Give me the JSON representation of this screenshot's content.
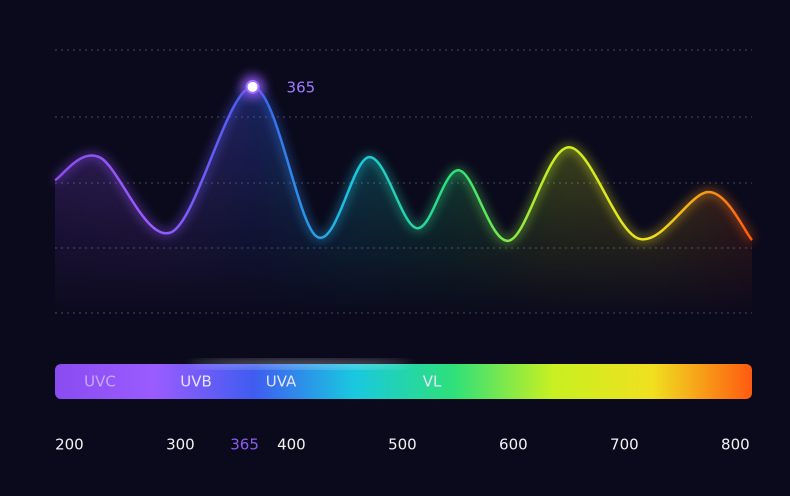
{
  "chart_data": {
    "type": "line",
    "x": [
      187,
      227,
      292,
      365,
      423,
      470,
      513,
      551,
      596,
      650,
      713,
      776,
      815
    ],
    "values": [
      2.02,
      2.37,
      1.23,
      3.44,
      1.16,
      2.37,
      1.29,
      2.17,
      1.1,
      2.52,
      1.13,
      1.84,
      1.11
    ],
    "xlim": [
      187,
      815
    ],
    "ylim": [
      0,
      4
    ],
    "xticks": [
      200,
      300,
      400,
      500,
      600,
      700,
      800
    ],
    "highlight_x": 365,
    "bands": [
      "UVC",
      "UVB",
      "UVA",
      "VL"
    ],
    "colors": [
      "#8a4cf0",
      "#9a5cff",
      "#3f5cf0",
      "#19c8e0",
      "#2ee07a",
      "#c8f020",
      "#f0e020",
      "#ff5a10"
    ]
  }
}
